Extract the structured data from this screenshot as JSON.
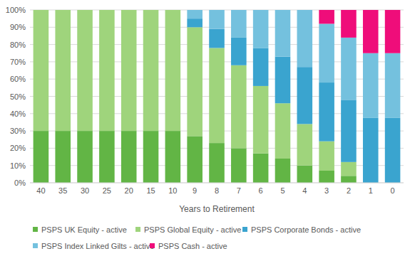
{
  "chart_data": {
    "type": "bar",
    "stacked": true,
    "grid": true,
    "legend": "bottom",
    "x_label": "Years to Retirement",
    "categories": [
      "40",
      "35",
      "30",
      "25",
      "20",
      "15",
      "10",
      "9",
      "8",
      "7",
      "6",
      "5",
      "4",
      "3",
      "2",
      "1",
      "0"
    ],
    "ylim": [
      0,
      100
    ],
    "yticks": [
      {
        "value": 0,
        "label": "0%"
      },
      {
        "value": 10,
        "label": "10%"
      },
      {
        "value": 20,
        "label": "20%"
      },
      {
        "value": 30,
        "label": "30%"
      },
      {
        "value": 40,
        "label": "40%"
      },
      {
        "value": 50,
        "label": "50%"
      },
      {
        "value": 60,
        "label": "60%"
      },
      {
        "value": 70,
        "label": "70%"
      },
      {
        "value": 80,
        "label": "80%"
      },
      {
        "value": 90,
        "label": "90%"
      },
      {
        "value": 100,
        "label": "100%"
      }
    ],
    "series": [
      {
        "name": "PSPS UK Equity - active",
        "color": "#62b545",
        "values": [
          30,
          30,
          30,
          30,
          30,
          30,
          30,
          27,
          23,
          20,
          17,
          14,
          10,
          7,
          4,
          0,
          0
        ]
      },
      {
        "name": "PSPS Global Equity - active",
        "color": "#9fd47c",
        "values": [
          70,
          70,
          70,
          70,
          70,
          70,
          70,
          63,
          55,
          48,
          39,
          32,
          24,
          17,
          8,
          0,
          0
        ]
      },
      {
        "name": "PSPS Corporate Bonds - active",
        "color": "#3aa4cf",
        "values": [
          0,
          0,
          0,
          0,
          0,
          0,
          0,
          5,
          11,
          16,
          22,
          27,
          33,
          34,
          36,
          37.5,
          37.5
        ]
      },
      {
        "name": "PSPS Index Linked Gilts - active",
        "color": "#74c1de",
        "values": [
          0,
          0,
          0,
          0,
          0,
          0,
          0,
          5,
          11,
          16,
          22,
          27,
          33,
          34,
          36,
          37.5,
          37.5
        ]
      },
      {
        "name": "PSPS Cash - active",
        "color": "#ef0d7a",
        "values": [
          0,
          0,
          0,
          0,
          0,
          0,
          0,
          0,
          0,
          0,
          0,
          0,
          0,
          8,
          16,
          25,
          25
        ]
      }
    ]
  }
}
